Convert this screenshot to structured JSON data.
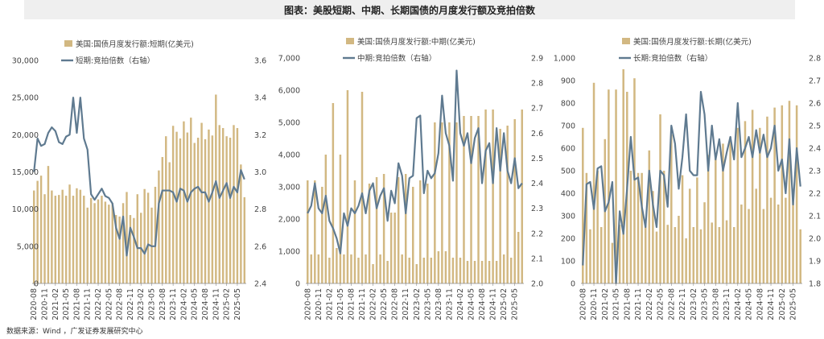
{
  "title": "图表：美股短期、中期、长期国债的月度发行额及竞拍倍数",
  "source": "数据来源：Wind ，广发证券发展研究中心",
  "colors": {
    "bar": "#d2b882",
    "line": "#5f7a90"
  },
  "x_tick_labels": [
    "2020-08",
    "2020-11",
    "2021-02",
    "2021-05",
    "2021-08",
    "2021-11",
    "2022-02",
    "2022-05",
    "2022-08",
    "2022-11",
    "2023-02",
    "2023-05",
    "2023-08",
    "2023-11",
    "2024-02",
    "2024-05",
    "2024-08",
    "2024-11",
    "2025-02",
    "2025-05"
  ],
  "chart_data": [
    {
      "type": "bar",
      "title": "",
      "legend": [
        "美国:国债月度发行额:短期(亿美元)",
        "短期:竞拍倍数（右轴）"
      ],
      "x": [
        "2020-08",
        "2020-09",
        "2020-10",
        "2020-11",
        "2020-12",
        "2021-01",
        "2021-02",
        "2021-03",
        "2021-04",
        "2021-05",
        "2021-06",
        "2021-07",
        "2021-08",
        "2021-09",
        "2021-10",
        "2021-11",
        "2021-12",
        "2022-01",
        "2022-02",
        "2022-03",
        "2022-04",
        "2022-05",
        "2022-06",
        "2022-07",
        "2022-08",
        "2022-09",
        "2022-10",
        "2022-11",
        "2022-12",
        "2023-01",
        "2023-02",
        "2023-03",
        "2023-04",
        "2023-05",
        "2023-06",
        "2023-07",
        "2023-08",
        "2023-09",
        "2023-10",
        "2023-11",
        "2023-12",
        "2024-01",
        "2024-02",
        "2024-03",
        "2024-04",
        "2024-05",
        "2024-06",
        "2024-07",
        "2024-08",
        "2024-09",
        "2024-10",
        "2024-11",
        "2024-12",
        "2025-01",
        "2025-02",
        "2025-03",
        "2025-04",
        "2025-05",
        "2025-06",
        "2025-07"
      ],
      "series": [
        {
          "name": "美国:国债月度发行额:短期(亿美元)",
          "kind": "bar",
          "axis": "left",
          "values": [
            12500,
            13800,
            14500,
            12000,
            15800,
            12500,
            11800,
            11900,
            12600,
            11800,
            13300,
            11800,
            12800,
            12600,
            11800,
            10200,
            11500,
            10800,
            11300,
            11800,
            11000,
            10600,
            10800,
            9200,
            9000,
            10800,
            12300,
            9200,
            8800,
            12000,
            9500,
            12700,
            12200,
            10200,
            13000,
            15200,
            17000,
            19800,
            16300,
            21200,
            20400,
            19500,
            21800,
            20300,
            22300,
            18900,
            19600,
            21600,
            19400,
            20700,
            19900,
            25400,
            21300,
            20900,
            19800,
            19600,
            21300,
            20900,
            16000,
            11600
          ]
        },
        {
          "name": "短期:竞拍倍数（右轴）",
          "kind": "line",
          "axis": "right",
          "values": [
            3.0,
            3.18,
            3.14,
            3.15,
            3.21,
            3.24,
            3.22,
            3.16,
            3.15,
            3.19,
            3.2,
            3.4,
            3.21,
            3.4,
            3.18,
            3.12,
            2.88,
            2.85,
            2.88,
            2.91,
            2.87,
            2.86,
            2.83,
            2.7,
            2.64,
            2.76,
            2.55,
            2.7,
            2.65,
            2.59,
            2.59,
            2.56,
            2.61,
            2.6,
            2.6,
            2.83,
            2.9,
            2.9,
            2.9,
            2.89,
            2.84,
            2.91,
            2.9,
            2.84,
            2.89,
            2.91,
            2.92,
            2.89,
            2.89,
            2.84,
            2.89,
            2.95,
            2.86,
            2.9,
            2.94,
            2.86,
            2.92,
            2.89,
            3.01,
            2.96
          ]
        }
      ],
      "yleft_lim": [
        0,
        30000
      ],
      "yleft_ticks": [
        "0",
        "5,000",
        "10,000",
        "15,000",
        "20,000",
        "25,000",
        "30,000"
      ],
      "yright_lim": [
        2.4,
        3.6
      ],
      "yright_ticks": [
        "2.4",
        "2.6",
        "2.8",
        "3.0",
        "3.2",
        "3.4",
        "3.6"
      ]
    },
    {
      "type": "bar",
      "title": "",
      "legend": [
        "美国:国债月度发行额:中期(亿美元)",
        "中期:竞拍倍数（右轴）"
      ],
      "x": [
        "2020-08",
        "2020-09",
        "2020-10",
        "2020-11",
        "2020-12",
        "2021-01",
        "2021-02",
        "2021-03",
        "2021-04",
        "2021-05",
        "2021-06",
        "2021-07",
        "2021-08",
        "2021-09",
        "2021-10",
        "2021-11",
        "2021-12",
        "2022-01",
        "2022-02",
        "2022-03",
        "2022-04",
        "2022-05",
        "2022-06",
        "2022-07",
        "2022-08",
        "2022-09",
        "2022-10",
        "2022-11",
        "2022-12",
        "2023-01",
        "2023-02",
        "2023-03",
        "2023-04",
        "2023-05",
        "2023-06",
        "2023-07",
        "2023-08",
        "2023-09",
        "2023-10",
        "2023-11",
        "2023-12",
        "2024-01",
        "2024-02",
        "2024-03",
        "2024-04",
        "2024-05",
        "2024-06",
        "2024-07",
        "2024-08",
        "2024-09",
        "2024-10",
        "2024-11",
        "2024-12",
        "2025-01",
        "2025-02",
        "2025-03",
        "2025-04",
        "2025-05",
        "2025-06",
        "2025-07"
      ],
      "series": [
        {
          "name": "美国:国债月度发行额:中期(亿美元)",
          "kind": "bar",
          "axis": "left",
          "values": [
            3200,
            900,
            3200,
            900,
            3000,
            4000,
            800,
            5600,
            1100,
            4000,
            900,
            6000,
            900,
            3200,
            800,
            5950,
            900,
            3100,
            600,
            3300,
            900,
            3400,
            700,
            2200,
            2200,
            3300,
            900,
            3400,
            800,
            3000,
            600,
            3200,
            800,
            3100,
            800,
            5000,
            1000,
            5000,
            1000,
            5000,
            800,
            5000,
            800,
            5200,
            700,
            5200,
            700,
            5200,
            700,
            5400,
            700,
            5400,
            700,
            4800,
            900,
            4900,
            800,
            5100,
            1600,
            5400
          ]
        },
        {
          "name": "中期:竞拍倍数（右轴）",
          "kind": "line",
          "axis": "right",
          "values": [
            2.28,
            2.31,
            2.4,
            2.3,
            2.28,
            2.35,
            2.25,
            2.22,
            2.18,
            2.12,
            2.28,
            2.23,
            2.3,
            2.28,
            2.31,
            2.36,
            2.28,
            2.37,
            2.4,
            2.3,
            2.35,
            2.38,
            2.25,
            2.37,
            2.32,
            2.48,
            2.43,
            2.28,
            2.42,
            2.43,
            2.66,
            2.67,
            2.36,
            2.45,
            2.42,
            2.44,
            2.52,
            2.75,
            2.6,
            2.55,
            2.41,
            2.85,
            2.6,
            2.55,
            2.6,
            2.48,
            2.58,
            2.62,
            2.4,
            2.53,
            2.56,
            2.4,
            2.62,
            2.45,
            2.6,
            2.45,
            2.4,
            2.5,
            2.38,
            2.4
          ]
        }
      ],
      "yleft_lim": [
        0,
        7000
      ],
      "yleft_ticks": [
        "0",
        "1,000",
        "2,000",
        "3,000",
        "4,000",
        "5,000",
        "6,000",
        "7,000"
      ],
      "yright_lim": [
        2.0,
        2.9
      ],
      "yright_ticks": [
        "2.0",
        "2.1",
        "2.2",
        "2.3",
        "2.4",
        "2.5",
        "2.6",
        "2.7",
        "2.8",
        "2.9"
      ]
    },
    {
      "type": "bar",
      "title": "",
      "legend": [
        "美国:国债月度发行额:长期(亿美元)",
        "长期:竞拍倍数（右轴）"
      ],
      "x": [
        "2020-08",
        "2020-09",
        "2020-10",
        "2020-11",
        "2020-12",
        "2021-01",
        "2021-02",
        "2021-03",
        "2021-04",
        "2021-05",
        "2021-06",
        "2021-07",
        "2021-08",
        "2021-09",
        "2021-10",
        "2021-11",
        "2021-12",
        "2022-01",
        "2022-02",
        "2022-03",
        "2022-04",
        "2022-05",
        "2022-06",
        "2022-07",
        "2022-08",
        "2022-09",
        "2022-10",
        "2022-11",
        "2022-12",
        "2023-01",
        "2023-02",
        "2023-03",
        "2023-04",
        "2023-05",
        "2023-06",
        "2023-07",
        "2023-08",
        "2023-09",
        "2023-10",
        "2023-11",
        "2023-12",
        "2024-01",
        "2024-02",
        "2024-03",
        "2024-04",
        "2024-05",
        "2024-06",
        "2024-07",
        "2024-08",
        "2024-09",
        "2024-10",
        "2024-11",
        "2024-12",
        "2025-01",
        "2025-02",
        "2025-03",
        "2025-04",
        "2025-05",
        "2025-06",
        "2025-07"
      ],
      "series": [
        {
          "name": "美国:国债月度发行额:长期(亿美元)",
          "kind": "bar",
          "axis": "left",
          "values": [
            690,
            490,
            240,
            890,
            500,
            250,
            640,
            860,
            180,
            860,
            260,
            950,
            850,
            500,
            910,
            490,
            490,
            260,
            590,
            410,
            230,
            750,
            500,
            260,
            660,
            250,
            300,
            480,
            200,
            420,
            250,
            470,
            240,
            360,
            570,
            270,
            570,
            250,
            620,
            280,
            650,
            250,
            690,
            350,
            720,
            330,
            770,
            420,
            690,
            330,
            740,
            380,
            780,
            350,
            790,
            380,
            810,
            420,
            790,
            240
          ]
        },
        {
          "name": "长期:竞拍倍数（右轴）",
          "kind": "line",
          "axis": "right",
          "values": [
            1.88,
            2.24,
            2.25,
            2.13,
            2.31,
            2.32,
            2.12,
            2.16,
            2.25,
            1.8,
            2.12,
            2.02,
            2.22,
            2.45,
            2.26,
            2.27,
            2.14,
            2.05,
            2.3,
            2.15,
            2.05,
            2.3,
            2.28,
            2.14,
            2.5,
            2.42,
            2.22,
            2.36,
            2.55,
            2.3,
            2.28,
            2.28,
            2.65,
            2.55,
            2.3,
            2.5,
            2.35,
            2.44,
            2.3,
            2.38,
            2.45,
            2.35,
            2.6,
            2.36,
            2.4,
            2.45,
            2.36,
            2.48,
            2.38,
            2.46,
            2.36,
            2.4,
            2.5,
            2.3,
            2.35,
            2.2,
            2.44,
            2.15,
            2.4,
            2.23
          ]
        }
      ],
      "yleft_lim": [
        0,
        1000
      ],
      "yleft_ticks": [
        "0",
        "100",
        "200",
        "300",
        "400",
        "500",
        "600",
        "700",
        "800",
        "900",
        "1,000"
      ],
      "yright_lim": [
        1.8,
        2.8
      ],
      "yright_ticks": [
        "1.8",
        "1.9",
        "2.0",
        "2.1",
        "2.2",
        "2.3",
        "2.4",
        "2.5",
        "2.6",
        "2.7",
        "2.8"
      ]
    }
  ]
}
